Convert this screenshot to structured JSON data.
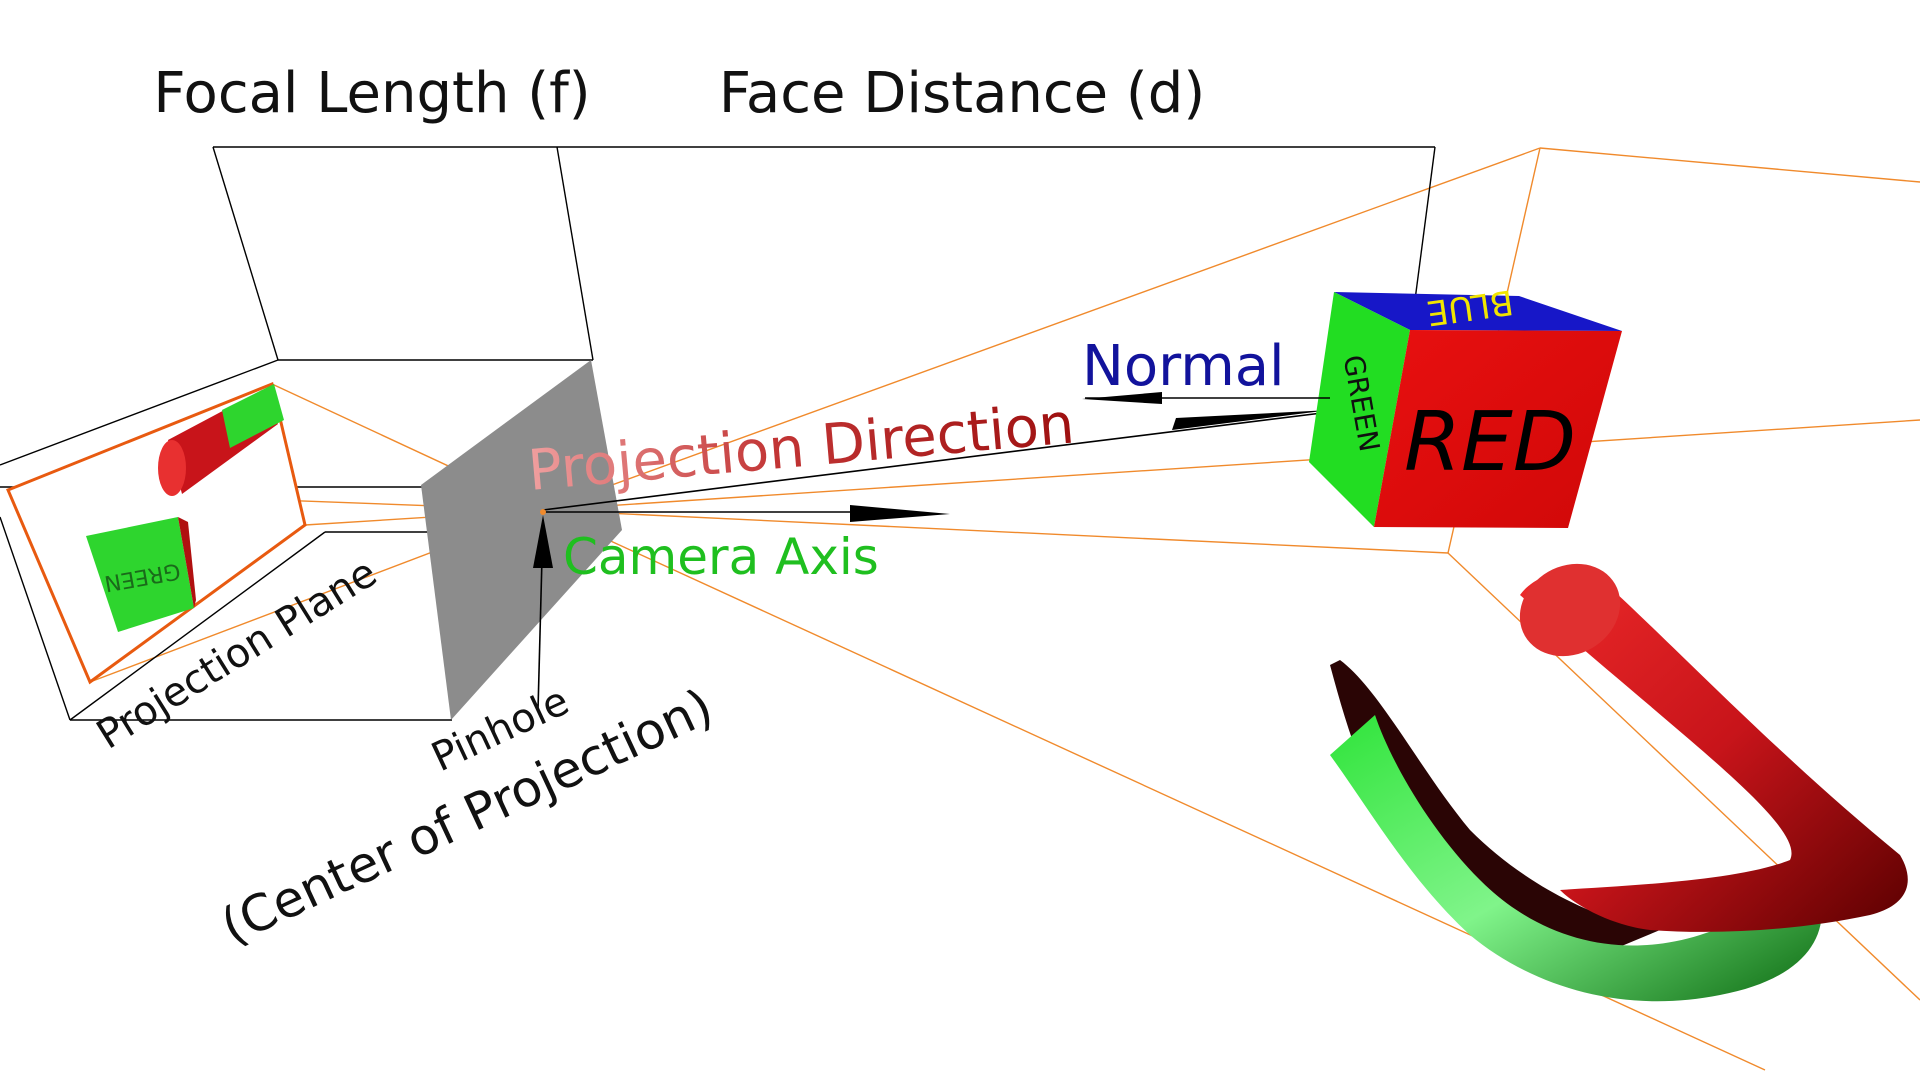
{
  "labels": {
    "focal_length": "Focal Length (f)",
    "face_distance": "Face Distance (d)",
    "normal": "Normal",
    "projection_direction": "Projection Direction",
    "camera_axis": "Camera Axis",
    "projection_plane": "Projection Plane",
    "pinhole": "Pinhole",
    "center_of_projection": "(Center of Projection)",
    "cube_red": "RED",
    "cube_green": "GREEN",
    "cube_blue": "BLUE",
    "image_green": "GREEN"
  },
  "colors": {
    "frame_lines": "#000000",
    "frustum_lines": "#f08a2c",
    "projection_plane_border": "#e85a10",
    "pinhole_plane": "#8c8c8c",
    "normal_text": "#12139c",
    "projection_direction_text": "#a51616",
    "camera_axis_text": "#1fbf1f",
    "cube_front": "#e40f0f",
    "cube_left": "#22dd22",
    "cube_top": "#1717c8",
    "cube_top_text": "#f1e500",
    "tube_red": "#c8141a",
    "tube_green": "#1ecb2a"
  }
}
